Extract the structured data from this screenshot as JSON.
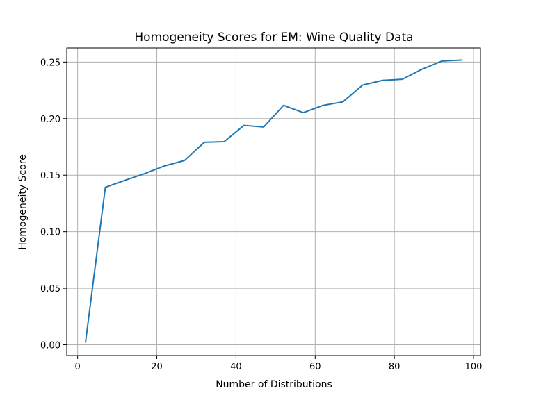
{
  "chart_data": {
    "type": "line",
    "title": "Homogeneity Scores for EM: Wine Quality Data",
    "xlabel": "Number of Distributions",
    "ylabel": "Homogeneity Score",
    "xlim": [
      -2.75,
      101.75
    ],
    "ylim": [
      -0.0095,
      0.2625
    ],
    "xticks": [
      0,
      20,
      40,
      60,
      80,
      100
    ],
    "xtick_labels": [
      "0",
      "20",
      "40",
      "60",
      "80",
      "100"
    ],
    "yticks": [
      0.0,
      0.05,
      0.1,
      0.15,
      0.2,
      0.25
    ],
    "ytick_labels": [
      "0.00",
      "0.05",
      "0.10",
      "0.15",
      "0.20",
      "0.25"
    ],
    "grid": true,
    "line_color": "#1f77b4",
    "series": [
      {
        "x": [
          2,
          7,
          12,
          17,
          22,
          27,
          32,
          37,
          42,
          47,
          52,
          57,
          62,
          67,
          72,
          77,
          82,
          87,
          92,
          97
        ],
        "y": [
          0.0025,
          0.1393,
          0.1455,
          0.1515,
          0.1582,
          0.163,
          0.1791,
          0.1796,
          0.194,
          0.1926,
          0.2117,
          0.2053,
          0.2117,
          0.2148,
          0.2297,
          0.2338,
          0.2348,
          0.2437,
          0.2509,
          0.2518
        ]
      }
    ]
  }
}
